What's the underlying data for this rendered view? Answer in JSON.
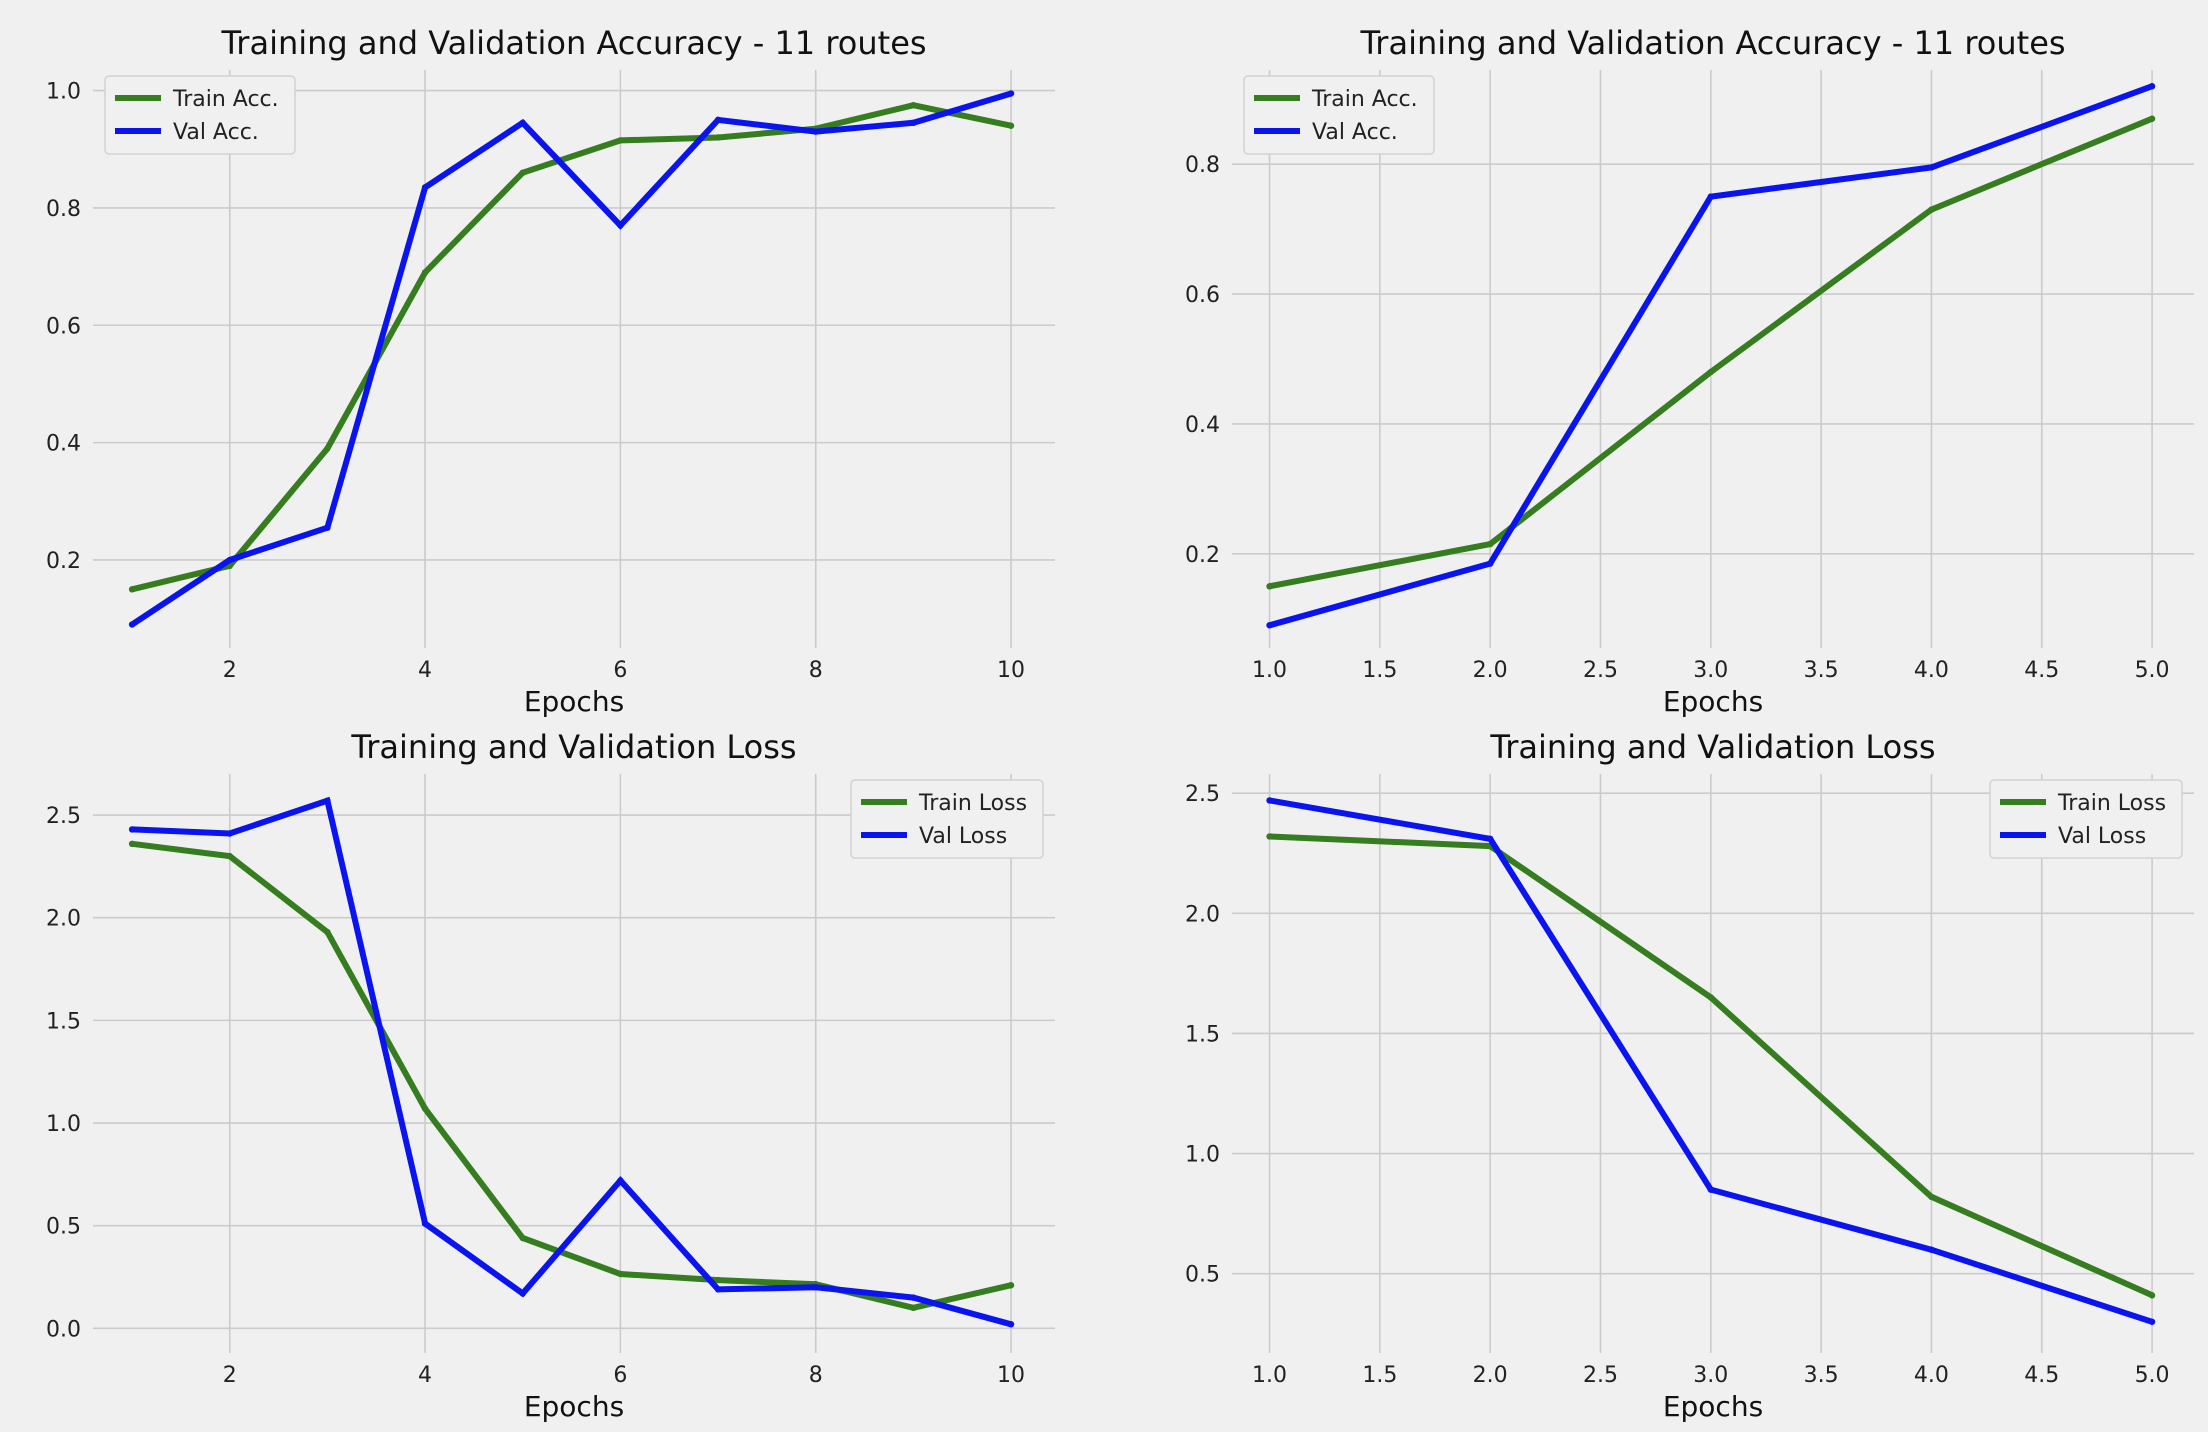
{
  "figure": {
    "background": "#f0f0f0"
  },
  "chart_data": [
    {
      "type": "line",
      "title": "Training and Validation Accuracy - 11 routes",
      "xlabel": "Epochs",
      "ylabel": "",
      "xlim": [
        0.6,
        10.45
      ],
      "ylim": [
        0.05,
        1.035
      ],
      "xticks": [
        2,
        4,
        6,
        8,
        10
      ],
      "yticks": [
        0.2,
        0.4,
        0.6,
        0.8,
        1.0
      ],
      "xtick_labels": [
        "2",
        "4",
        "6",
        "8",
        "10"
      ],
      "ytick_labels": [
        "0.2",
        "0.4",
        "0.6",
        "0.8",
        "1.0"
      ],
      "grid": true,
      "legend_position": "top-left",
      "series": [
        {
          "name": "Train Acc.",
          "color": "#367d20",
          "x": [
            1,
            2,
            3,
            4,
            5,
            6,
            7,
            8,
            9,
            10
          ],
          "y": [
            0.15,
            0.19,
            0.39,
            0.69,
            0.86,
            0.915,
            0.92,
            0.935,
            0.975,
            0.94
          ]
        },
        {
          "name": "Val Acc.",
          "color": "#0a14f0",
          "x": [
            1,
            2,
            3,
            4,
            5,
            6,
            7,
            8,
            9,
            10
          ],
          "y": [
            0.09,
            0.2,
            0.255,
            0.835,
            0.945,
            0.77,
            0.95,
            0.93,
            0.945,
            0.995
          ]
        }
      ]
    },
    {
      "type": "line",
      "title": "Training and Validation Accuracy - 11 routes",
      "xlabel": "Epochs",
      "ylabel": "",
      "xlim": [
        0.83,
        5.19
      ],
      "ylim": [
        0.055,
        0.945
      ],
      "xticks": [
        1.0,
        1.5,
        2.0,
        2.5,
        3.0,
        3.5,
        4.0,
        4.5,
        5.0
      ],
      "yticks": [
        0.2,
        0.4,
        0.6,
        0.8
      ],
      "xtick_labels": [
        "1.0",
        "1.5",
        "2.0",
        "2.5",
        "3.0",
        "3.5",
        "4.0",
        "4.5",
        "5.0"
      ],
      "ytick_labels": [
        "0.2",
        "0.4",
        "0.6",
        "0.8"
      ],
      "grid": true,
      "legend_position": "top-left",
      "series": [
        {
          "name": "Train Acc.",
          "color": "#367d20",
          "x": [
            1,
            2,
            3,
            4,
            5
          ],
          "y": [
            0.15,
            0.215,
            0.48,
            0.73,
            0.87
          ]
        },
        {
          "name": "Val Acc.",
          "color": "#0a14f0",
          "x": [
            1,
            2,
            3,
            4,
            5
          ],
          "y": [
            0.09,
            0.185,
            0.75,
            0.795,
            0.92
          ]
        }
      ]
    },
    {
      "type": "line",
      "title": "Training and Validation Loss",
      "xlabel": "Epochs",
      "ylabel": "",
      "xlim": [
        0.6,
        10.45
      ],
      "ylim": [
        -0.12,
        2.7
      ],
      "xticks": [
        2,
        4,
        6,
        8,
        10
      ],
      "yticks": [
        0.0,
        0.5,
        1.0,
        1.5,
        2.0,
        2.5
      ],
      "xtick_labels": [
        "2",
        "4",
        "6",
        "8",
        "10"
      ],
      "ytick_labels": [
        "0.0",
        "0.5",
        "1.0",
        "1.5",
        "2.0",
        "2.5"
      ],
      "grid": true,
      "legend_position": "top-right",
      "series": [
        {
          "name": "Train Loss",
          "color": "#367d20",
          "x": [
            1,
            2,
            3,
            4,
            5,
            6,
            7,
            8,
            9,
            10
          ],
          "y": [
            2.36,
            2.3,
            1.93,
            1.07,
            0.44,
            0.265,
            0.235,
            0.215,
            0.1,
            0.21
          ]
        },
        {
          "name": "Val Loss",
          "color": "#0a14f0",
          "x": [
            1,
            2,
            3,
            4,
            5,
            6,
            7,
            8,
            9,
            10
          ],
          "y": [
            2.43,
            2.41,
            2.57,
            0.51,
            0.17,
            0.72,
            0.19,
            0.2,
            0.15,
            0.02
          ]
        }
      ]
    },
    {
      "type": "line",
      "title": "Training and Validation Loss",
      "xlabel": "Epochs",
      "ylabel": "",
      "xlim": [
        0.83,
        5.19
      ],
      "ylim": [
        0.17,
        2.58
      ],
      "xticks": [
        1.0,
        1.5,
        2.0,
        2.5,
        3.0,
        3.5,
        4.0,
        4.5,
        5.0
      ],
      "yticks": [
        0.5,
        1.0,
        1.5,
        2.0,
        2.5
      ],
      "xtick_labels": [
        "1.0",
        "1.5",
        "2.0",
        "2.5",
        "3.0",
        "3.5",
        "4.0",
        "4.5",
        "5.0"
      ],
      "ytick_labels": [
        "0.5",
        "1.0",
        "1.5",
        "2.0",
        "2.5"
      ],
      "grid": true,
      "legend_position": "top-right",
      "series": [
        {
          "name": "Train Loss",
          "color": "#367d20",
          "x": [
            1,
            2,
            3,
            4,
            5
          ],
          "y": [
            2.32,
            2.28,
            1.65,
            0.82,
            0.41
          ]
        },
        {
          "name": "Val Loss",
          "color": "#0a14f0",
          "x": [
            1,
            2,
            3,
            4,
            5
          ],
          "y": [
            2.47,
            2.31,
            0.85,
            0.6,
            0.3
          ]
        }
      ]
    }
  ]
}
